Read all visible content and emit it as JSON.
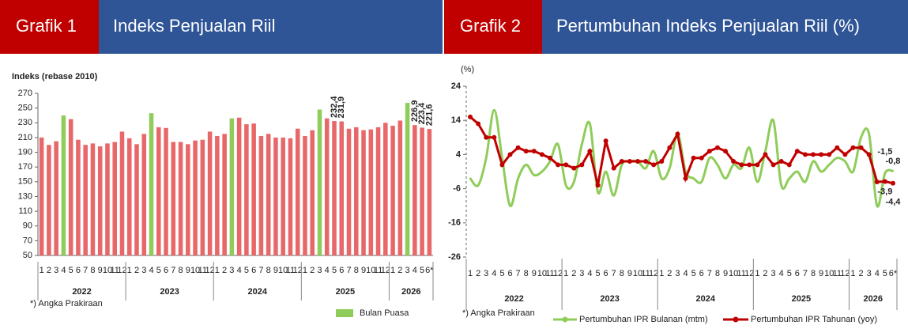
{
  "chart_data": [
    {
      "type": "bar",
      "label": "Grafik 1",
      "title": "Indeks Penjualan Riil",
      "y_label": "Indeks (rebase 2010)",
      "note": "*) Angka Prakiraan",
      "groups": [
        {
          "label": "2022",
          "categories": [
            "1",
            "2",
            "3",
            "4",
            "5",
            "6",
            "7",
            "8",
            "9",
            "10",
            "11",
            "12"
          ]
        },
        {
          "label": "2023",
          "categories": [
            "1",
            "2",
            "3",
            "4",
            "5",
            "6",
            "7",
            "8",
            "9",
            "10",
            "11",
            "12"
          ]
        },
        {
          "label": "2024",
          "categories": [
            "1",
            "2",
            "3",
            "4",
            "5",
            "6",
            "7",
            "8",
            "9",
            "10",
            "11",
            "12"
          ]
        },
        {
          "label": "2025",
          "categories": [
            "1",
            "2",
            "3",
            "4",
            "5",
            "6",
            "7",
            "8",
            "9",
            "10",
            "11",
            "12"
          ]
        },
        {
          "label": "2026",
          "categories": [
            "1",
            "2",
            "3",
            "4",
            "5",
            "6*"
          ]
        }
      ],
      "values": [
        210,
        200,
        205,
        240,
        235,
        207,
        200,
        202,
        198,
        202,
        204,
        218,
        209,
        201,
        215,
        243,
        224,
        223,
        204,
        204,
        201,
        206,
        207,
        218,
        212,
        215,
        236,
        237,
        228,
        229,
        212,
        215,
        210,
        210,
        209,
        222,
        212,
        220,
        248,
        236,
        232.4,
        231.9,
        222,
        224,
        220,
        221,
        224,
        230,
        226,
        233,
        257,
        226.9,
        223.4,
        221.6
      ],
      "value_labels": [
        null,
        null,
        null,
        null,
        null,
        null,
        null,
        null,
        null,
        null,
        null,
        null,
        null,
        null,
        null,
        null,
        null,
        null,
        null,
        null,
        null,
        null,
        null,
        null,
        null,
        null,
        null,
        null,
        null,
        null,
        null,
        null,
        null,
        null,
        null,
        null,
        null,
        null,
        null,
        null,
        "232,4",
        "231,9",
        null,
        null,
        null,
        null,
        null,
        null,
        null,
        null,
        null,
        "226,9",
        "223,4",
        "221,6"
      ],
      "bar_colors": [
        "#e8686a",
        "#e8686a",
        "#e8686a",
        "#8fcc5a",
        "#e8686a",
        "#e8686a",
        "#e8686a",
        "#e8686a",
        "#e8686a",
        "#e8686a",
        "#e8686a",
        "#e8686a",
        "#e8686a",
        "#e8686a",
        "#e8686a",
        "#8fcc5a",
        "#e8686a",
        "#e8686a",
        "#e8686a",
        "#e8686a",
        "#e8686a",
        "#e8686a",
        "#e8686a",
        "#e8686a",
        "#e8686a",
        "#e8686a",
        "#8fcc5a",
        "#e8686a",
        "#e8686a",
        "#e8686a",
        "#e8686a",
        "#e8686a",
        "#e8686a",
        "#e8686a",
        "#e8686a",
        "#e8686a",
        "#e8686a",
        "#e8686a",
        "#8fcc5a",
        "#e8686a",
        "#e8686a",
        "#e8686a",
        "#e8686a",
        "#e8686a",
        "#e8686a",
        "#e8686a",
        "#e8686a",
        "#e8686a",
        "#e8686a",
        "#e8686a",
        "#8fcc5a",
        "#e8686a",
        "#e8686a",
        "#e8686a"
      ],
      "legend": [
        {
          "name": "Bulan Puasa",
          "color": "#8fcc5a"
        }
      ],
      "ylim": [
        50,
        270
      ],
      "yticks": [
        50,
        70,
        90,
        110,
        130,
        150,
        170,
        190,
        210,
        230,
        250,
        270
      ]
    },
    {
      "type": "line",
      "label": "Grafik 2",
      "title": "Pertumbuhan Indeks Penjualan Riil (%)",
      "y_label": "(%)",
      "note": "*) Angka  Prakiraan",
      "groups": [
        {
          "label": "2022",
          "categories": [
            "1",
            "2",
            "3",
            "4",
            "5",
            "6",
            "7",
            "8",
            "9",
            "10",
            "11",
            "12"
          ]
        },
        {
          "label": "2023",
          "categories": [
            "1",
            "2",
            "3",
            "4",
            "5",
            "6",
            "7",
            "8",
            "9",
            "10",
            "11",
            "12"
          ]
        },
        {
          "label": "2024",
          "categories": [
            "1",
            "2",
            "3",
            "4",
            "5",
            "6",
            "7",
            "8",
            "9",
            "10",
            "11",
            "12"
          ]
        },
        {
          "label": "2025",
          "categories": [
            "1",
            "2",
            "3",
            "4",
            "5",
            "6",
            "7",
            "8",
            "9",
            "10",
            "11",
            "12"
          ]
        },
        {
          "label": "2026",
          "categories": [
            "1",
            "2",
            "3",
            "4",
            "5",
            "6*"
          ]
        }
      ],
      "series": [
        {
          "name": "Pertumbuhan IPR Bulanan (mtm)",
          "color": "#8fcc5a",
          "smooth": true,
          "markers": false,
          "values": [
            -3,
            -5,
            3,
            17,
            3,
            -11,
            -3,
            1,
            -2,
            -1,
            2,
            7,
            -5,
            -4,
            7,
            13,
            -7,
            -1,
            -8,
            1,
            2,
            2,
            0,
            5,
            -3,
            0,
            10,
            -1,
            -3,
            -4,
            3,
            1,
            -3,
            1,
            0,
            6,
            -4,
            5,
            14,
            -5,
            -3,
            -1,
            -4,
            2,
            -1,
            1,
            3,
            2,
            -1,
            9,
            10,
            -11,
            -1.5,
            -0.8
          ],
          "value_labels": [
            null,
            null,
            null,
            null,
            null,
            null,
            null,
            null,
            null,
            null,
            null,
            null,
            null,
            null,
            null,
            null,
            null,
            null,
            null,
            null,
            null,
            null,
            null,
            null,
            null,
            null,
            null,
            null,
            null,
            null,
            null,
            null,
            null,
            null,
            null,
            null,
            null,
            null,
            null,
            null,
            null,
            null,
            null,
            null,
            null,
            null,
            null,
            null,
            null,
            null,
            null,
            null,
            "-1,5",
            "-0,8"
          ]
        },
        {
          "name": "Pertumbuhan IPR Tahunan (yoy)",
          "color": "#c00000",
          "smooth": false,
          "markers": true,
          "values": [
            15,
            13,
            9,
            9,
            1,
            4,
            6,
            5,
            5,
            4,
            3,
            1,
            1,
            0,
            1,
            5,
            -5,
            8,
            0,
            2,
            2,
            2,
            2,
            1,
            2,
            6,
            10,
            -3,
            3,
            3,
            5,
            6,
            5,
            2,
            1,
            1,
            1,
            4,
            1,
            2,
            1,
            5,
            4,
            4,
            4,
            4,
            6,
            4,
            6,
            6,
            4,
            -4,
            -3.9,
            -4.4
          ],
          "value_labels": [
            null,
            null,
            null,
            null,
            null,
            null,
            null,
            null,
            null,
            null,
            null,
            null,
            null,
            null,
            null,
            null,
            null,
            null,
            null,
            null,
            null,
            null,
            null,
            null,
            null,
            null,
            null,
            null,
            null,
            null,
            null,
            null,
            null,
            null,
            null,
            null,
            null,
            null,
            null,
            null,
            null,
            null,
            null,
            null,
            null,
            null,
            null,
            null,
            null,
            null,
            null,
            null,
            "-3,9",
            "-4,4"
          ]
        }
      ],
      "ylim": [
        -26,
        24
      ],
      "yticks": [
        -26,
        -16,
        -6,
        4,
        14,
        24
      ]
    }
  ]
}
